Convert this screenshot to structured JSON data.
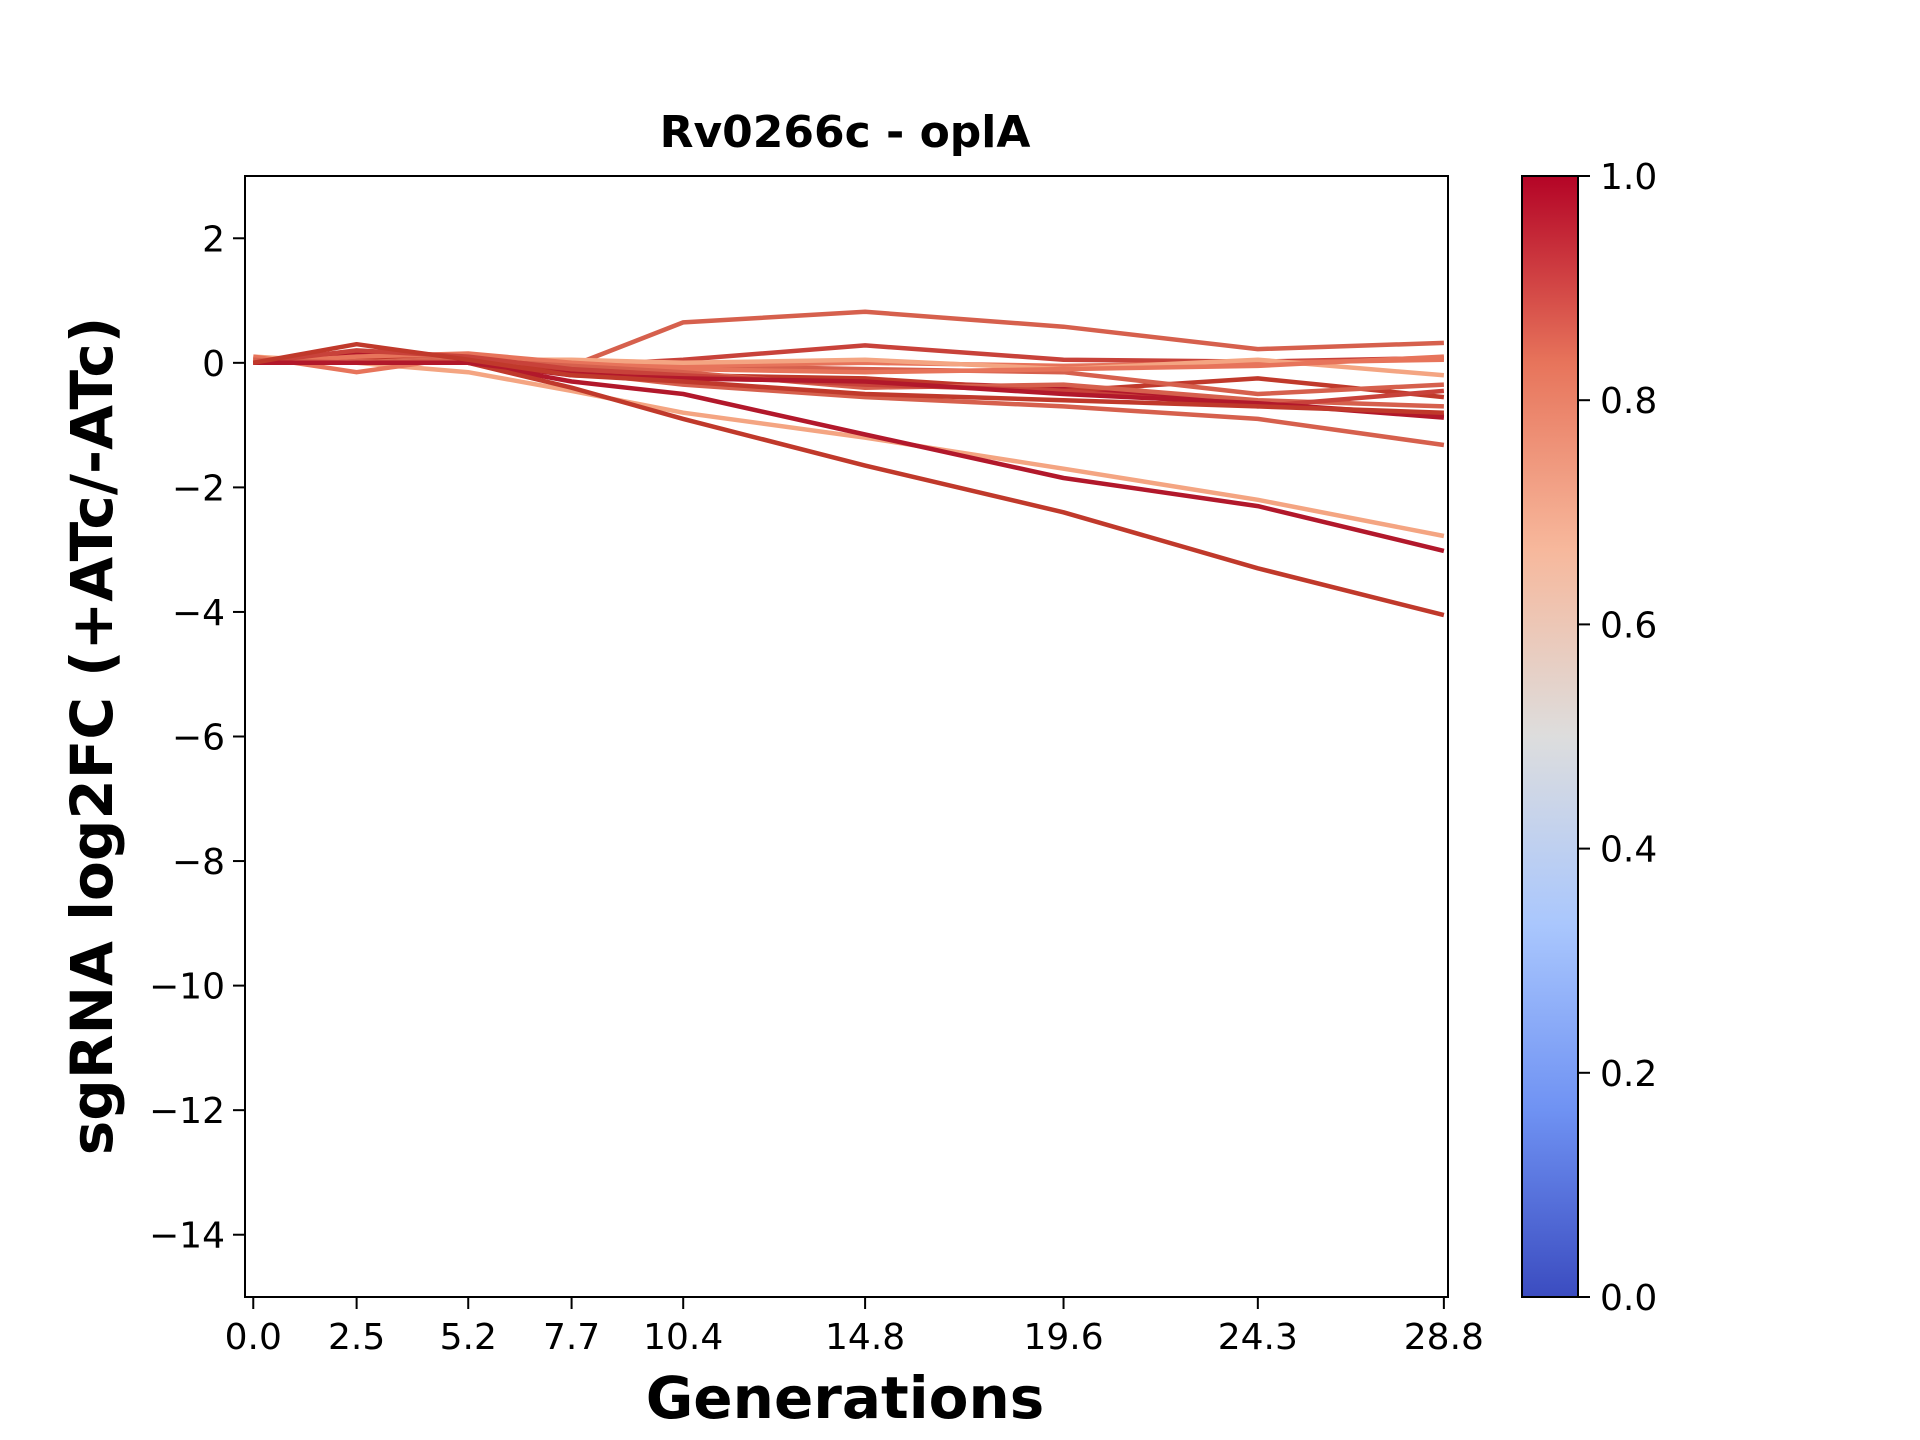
{
  "chart_data": {
    "type": "line",
    "title": "Rv0266c - oplA",
    "xlabel": "Generations",
    "ylabel": "sgRNA log2FC (+ATc/-ATc)",
    "x": [
      0.0,
      2.5,
      5.2,
      7.7,
      10.4,
      14.8,
      19.6,
      24.3,
      28.8
    ],
    "x_tick_labels": [
      "0.0",
      "2.5",
      "5.2",
      "7.7",
      "10.4",
      "14.8",
      "19.6",
      "24.3",
      "28.8"
    ],
    "xlim": [
      -0.2,
      28.9
    ],
    "ylim": [
      -15,
      3
    ],
    "y_ticks": [
      2,
      0,
      -2,
      -4,
      -6,
      -8,
      -10,
      -12,
      -14
    ],
    "y_tick_labels": [
      "2",
      "0",
      "−2",
      "−4",
      "−6",
      "−8",
      "−10",
      "−12",
      "−14"
    ],
    "colormap": "coolwarm",
    "colorbar": {
      "range": [
        0.0,
        1.0
      ],
      "ticks": [
        0.0,
        0.2,
        0.4,
        0.6,
        0.8,
        1.0
      ],
      "tick_labels": [
        "0.0",
        "0.2",
        "0.4",
        "0.6",
        "0.8",
        "1.0"
      ],
      "colors": [
        "#3b4cc0",
        "#6f92f3",
        "#aac7fd",
        "#dddddd",
        "#f7b89c",
        "#e7745b",
        "#b40426"
      ]
    },
    "series": [
      {
        "color": "#d6604d",
        "values": [
          0.05,
          0.05,
          0.05,
          -0.05,
          0.65,
          0.82,
          0.58,
          0.22,
          0.32
        ]
      },
      {
        "color": "#c8423a",
        "values": [
          0.05,
          0.05,
          0.05,
          -0.05,
          0.05,
          0.28,
          0.05,
          0.02,
          0.08
        ]
      },
      {
        "color": "#f4a582",
        "values": [
          0.1,
          0.0,
          -0.15,
          -0.45,
          -0.8,
          -1.2,
          -1.7,
          -2.2,
          -2.78
        ]
      },
      {
        "color": "#b2182b",
        "values": [
          0.0,
          0.1,
          0.0,
          -0.3,
          -0.5,
          -1.15,
          -1.85,
          -2.3,
          -3.02
        ]
      },
      {
        "color": "#c0392b",
        "values": [
          0.0,
          0.05,
          0.0,
          -0.4,
          -0.9,
          -1.65,
          -2.4,
          -3.3,
          -4.05
        ]
      },
      {
        "color": "#d6604d",
        "values": [
          0.0,
          0.05,
          0.0,
          -0.15,
          -0.35,
          -0.55,
          -0.7,
          -0.9,
          -1.32
        ]
      },
      {
        "color": "#b2182b",
        "values": [
          0.0,
          0.15,
          0.05,
          -0.15,
          -0.25,
          -0.3,
          -0.4,
          -0.65,
          -0.88
        ]
      },
      {
        "color": "#c0392b",
        "values": [
          0.0,
          0.1,
          0.05,
          -0.1,
          -0.2,
          -0.25,
          -0.45,
          -0.25,
          -0.55
        ]
      },
      {
        "color": "#d6604d",
        "values": [
          0.05,
          0.0,
          0.1,
          -0.05,
          -0.05,
          -0.1,
          -0.15,
          -0.5,
          -0.35
        ]
      },
      {
        "color": "#e7745b",
        "values": [
          0.1,
          -0.15,
          0.1,
          0.0,
          -0.05,
          0.0,
          -0.05,
          0.0,
          0.05
        ]
      },
      {
        "color": "#f4a582",
        "values": [
          0.05,
          0.0,
          0.05,
          0.05,
          0.0,
          0.05,
          -0.1,
          0.05,
          -0.2
        ]
      },
      {
        "color": "#e7745b",
        "values": [
          0.0,
          0.1,
          0.15,
          0.0,
          -0.1,
          -0.15,
          -0.1,
          -0.05,
          0.1
        ]
      },
      {
        "color": "#d6604d",
        "values": [
          0.05,
          0.0,
          0.05,
          -0.05,
          -0.15,
          -0.4,
          -0.35,
          -0.6,
          -0.7
        ]
      },
      {
        "color": "#c8423a",
        "values": [
          0.0,
          0.2,
          0.1,
          -0.1,
          -0.2,
          -0.35,
          -0.45,
          -0.7,
          -0.45
        ]
      },
      {
        "color": "#b2182b",
        "values": [
          0.0,
          0.0,
          0.0,
          -0.2,
          -0.25,
          -0.3,
          -0.5,
          -0.65,
          -0.85
        ]
      },
      {
        "color": "#c0392b",
        "values": [
          0.0,
          0.3,
          0.05,
          -0.2,
          -0.3,
          -0.5,
          -0.6,
          -0.7,
          -0.8
        ]
      }
    ]
  }
}
